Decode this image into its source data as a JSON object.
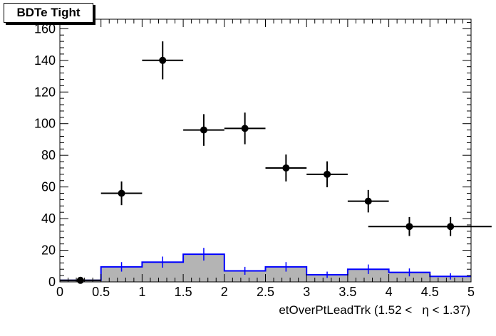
{
  "chart_data": {
    "type": "bar",
    "title": "BDTe Tight",
    "xlabel": "etOverPtLeadTrk (1.52 <   η < 1.37)",
    "ylabel": "",
    "xlim": [
      0,
      5
    ],
    "ylim": [
      0,
      166
    ],
    "x_ticks": [
      "0",
      "0.5",
      "1",
      "1.5",
      "2",
      "2.5",
      "3",
      "3.5",
      "4",
      "4.5",
      "5"
    ],
    "y_ticks": [
      "0",
      "20",
      "40",
      "60",
      "80",
      "100",
      "120",
      "140",
      "160"
    ],
    "grid": false,
    "legend": "none",
    "series": [
      {
        "style": "points-with-error-bars",
        "color": "#000000",
        "x": [
          0.25,
          0.75,
          1.25,
          1.75,
          2.25,
          2.75,
          3.25,
          3.75,
          4.25,
          4.75
        ],
        "x_halfwidth": [
          0.25,
          0.25,
          0.25,
          0.25,
          0.25,
          0.25,
          0.25,
          0.25,
          0.5,
          0.5
        ],
        "y": [
          1,
          56,
          140,
          96,
          97,
          72,
          68,
          51,
          35,
          35
        ],
        "y_err": [
          1,
          7.5,
          12,
          10,
          10,
          8.5,
          8.2,
          7.1,
          6,
          6
        ]
      },
      {
        "style": "filled-histogram",
        "fill": "#b4b4b4",
        "line": "#0000ff",
        "bin_edges": [
          0,
          0.5,
          1,
          1.5,
          2,
          2.5,
          3,
          3.5,
          4,
          4.5,
          5
        ],
        "values": [
          1,
          9.5,
          12.5,
          17.5,
          7,
          9.5,
          4.5,
          8,
          6,
          3.5
        ],
        "y_err": [
          0.5,
          3,
          3.5,
          4,
          2.5,
          3,
          2,
          3,
          2.5,
          2
        ]
      }
    ]
  }
}
